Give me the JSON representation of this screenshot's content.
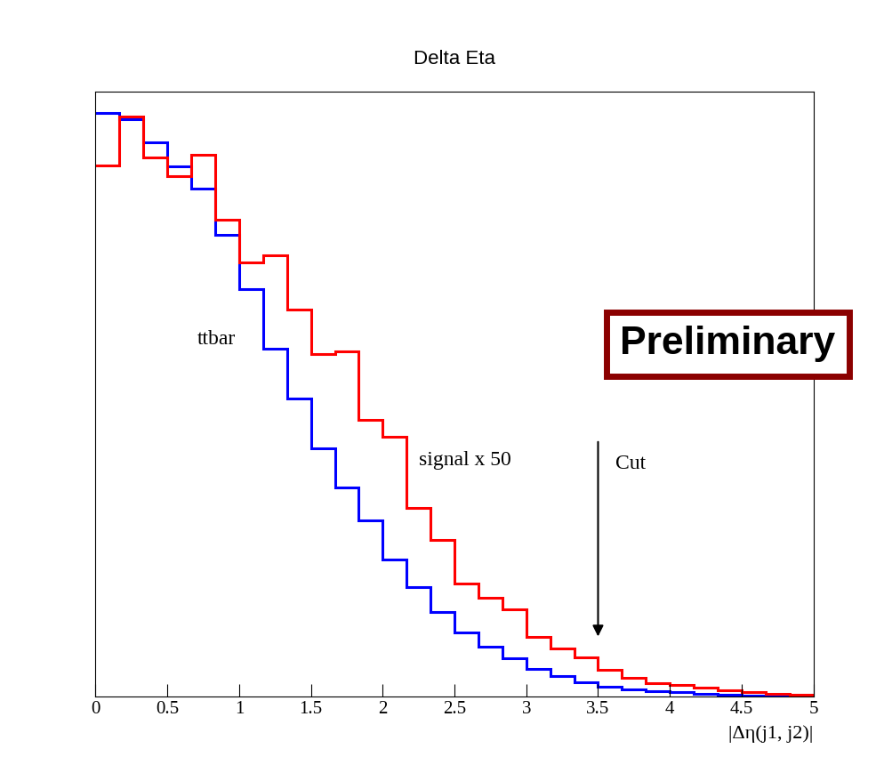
{
  "chart_data": {
    "type": "histogram",
    "title": "Delta Eta",
    "x_label": "|Δη(j1, j2)|",
    "bins": [
      0,
      0.1667,
      0.3333,
      0.5,
      0.6667,
      0.8333,
      1,
      1.1667,
      1.3333,
      1.5,
      1.6667,
      1.8333,
      2,
      2.1667,
      2.3333,
      2.5,
      2.6667,
      2.8333,
      3,
      3.1667,
      3.3333,
      3.5,
      3.6667,
      3.8333,
      4,
      4.1667,
      4.3333,
      4.5,
      4.6667,
      4.8333,
      5
    ],
    "series": [
      {
        "name": "ttbar",
        "color": "#0000ff",
        "values": [
          96.5,
          95.4,
          91.6,
          87.6,
          84.0,
          76.3,
          67.4,
          57.5,
          49.3,
          41.0,
          34.6,
          29.1,
          22.6,
          18.1,
          14.0,
          10.6,
          8.2,
          6.3,
          4.6,
          3.4,
          2.4,
          1.6,
          1.2,
          0.9,
          0.7,
          0.4,
          0.3,
          0.15,
          0.1,
          0.1
        ]
      },
      {
        "name": "signal x 50",
        "color": "#ff0000",
        "values": [
          87.8,
          95.9,
          89.1,
          86.0,
          89.6,
          78.8,
          71.8,
          72.9,
          64.0,
          56.6,
          57.1,
          45.7,
          42.9,
          31.2,
          25.9,
          18.7,
          16.3,
          14.4,
          9.9,
          7.9,
          6.5,
          4.4,
          3.1,
          2.2,
          1.9,
          1.5,
          1.0,
          0.7,
          0.4,
          0.3
        ]
      }
    ],
    "xlim": [
      0,
      5
    ],
    "xticks": [
      0,
      0.5,
      1,
      1.5,
      2,
      2.5,
      3,
      3.5,
      4,
      4.5,
      5
    ],
    "ylim": [
      0,
      100
    ],
    "yticks": [],
    "tick_labels": "x",
    "annotations": [
      {
        "text": "Cut",
        "x": 3.5
      },
      {
        "text": "Preliminary"
      }
    ]
  }
}
